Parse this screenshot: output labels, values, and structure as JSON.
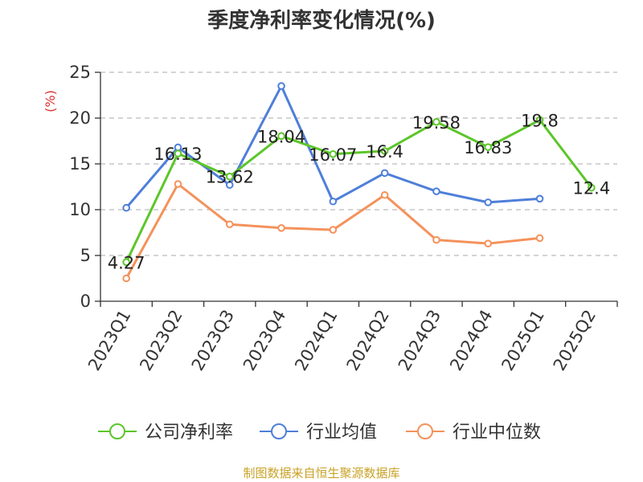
{
  "chart_data": {
    "type": "line",
    "title": "季度净利率变化情况(%)",
    "ylabel": "(%)",
    "xlabel": "",
    "ylim": [
      0,
      25
    ],
    "yticks": [
      0,
      5,
      10,
      15,
      20,
      25
    ],
    "grid": true,
    "legend_position": "bottom",
    "categories": [
      "2023Q1",
      "2023Q2",
      "2023Q3",
      "2023Q4",
      "2024Q1",
      "2024Q2",
      "2024Q3",
      "2024Q4",
      "2025Q1",
      "2025Q2"
    ],
    "series": [
      {
        "name": "公司净利率",
        "color": "#5cc62a",
        "values": [
          4.27,
          16.13,
          13.62,
          18.04,
          16.07,
          16.4,
          19.58,
          16.83,
          19.8,
          12.4
        ],
        "labels": [
          "4.27",
          "16.13",
          "13.62",
          "18.04",
          "16.07",
          "16.4",
          "19.58",
          "16.83",
          "19.8",
          "12.4"
        ]
      },
      {
        "name": "行业均值",
        "color": "#4e7fd9",
        "values": [
          10.2,
          16.8,
          12.7,
          23.5,
          10.9,
          14.0,
          12.0,
          10.8,
          11.2,
          null
        ]
      },
      {
        "name": "行业中位数",
        "color": "#f4925b",
        "values": [
          2.5,
          12.8,
          8.4,
          8.0,
          7.8,
          11.6,
          6.7,
          6.3,
          6.9,
          null
        ]
      }
    ],
    "source": "制图数据来自恒生聚源数据库",
    "source_color": "#c9a227",
    "ylabel_color": "#d9302c"
  }
}
